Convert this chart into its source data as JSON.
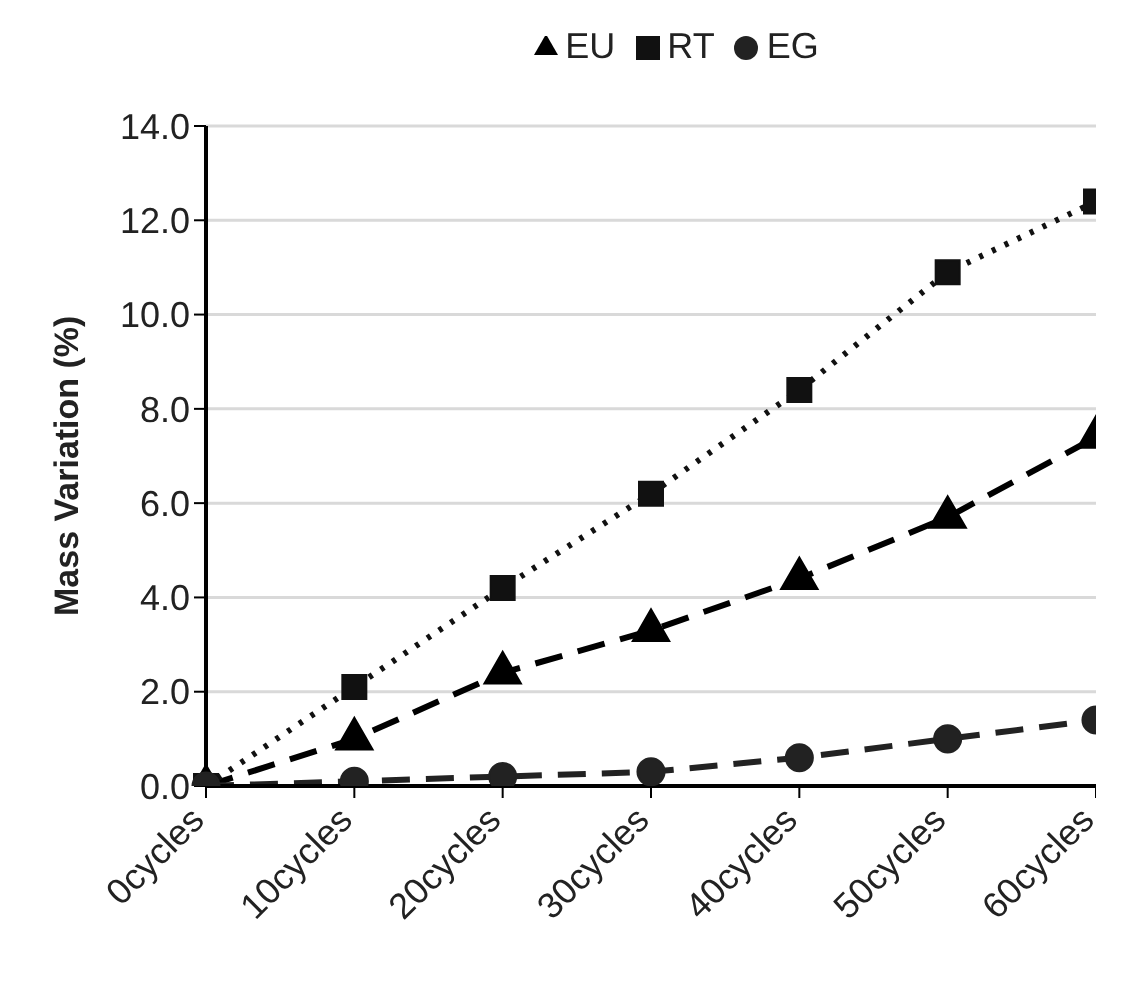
{
  "chart_data": {
    "type": "line",
    "ylabel": "Mass Variation (%)",
    "categories": [
      "0cycles",
      "10cycles",
      "20cycles",
      "30cycles",
      "40cycles",
      "50cycles",
      "60cycles"
    ],
    "series": [
      {
        "name": "EU",
        "color": "#000000",
        "marker": "triangle",
        "line_style": "dashed",
        "values": [
          0,
          1.0,
          2.4,
          3.3,
          4.4,
          5.7,
          7.4
        ]
      },
      {
        "name": "RT",
        "color": "#111111",
        "marker": "square",
        "line_style": "dotted",
        "values": [
          0,
          2.1,
          4.2,
          6.2,
          8.4,
          10.9,
          12.4
        ]
      },
      {
        "name": "EG",
        "color": "#222222",
        "marker": "circle",
        "line_style": "dashed",
        "values": [
          0,
          0.1,
          0.2,
          0.3,
          0.6,
          1.0,
          1.4
        ]
      }
    ],
    "ylim": [
      0,
      14
    ],
    "yticks": [
      {
        "value": 0,
        "label": "0.0"
      },
      {
        "value": 2,
        "label": "2.0"
      },
      {
        "value": 4,
        "label": "4.0"
      },
      {
        "value": 6,
        "label": "6.0"
      },
      {
        "value": 8,
        "label": "8.0"
      },
      {
        "value": 10,
        "label": "10.0"
      },
      {
        "value": 12,
        "label": "12.0"
      },
      {
        "value": 14,
        "label": "14.0"
      }
    ],
    "grid": "y",
    "legend": "top"
  }
}
